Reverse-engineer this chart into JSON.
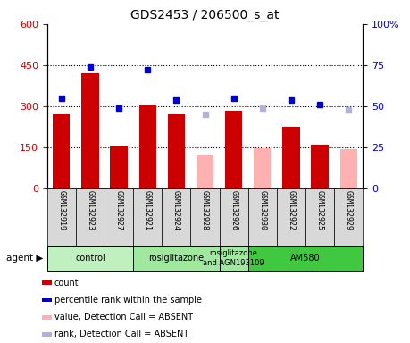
{
  "title": "GDS2453 / 206500_s_at",
  "samples": [
    "GSM132919",
    "GSM132923",
    "GSM132927",
    "GSM132921",
    "GSM132924",
    "GSM132928",
    "GSM132926",
    "GSM132930",
    "GSM132922",
    "GSM132925",
    "GSM132929"
  ],
  "count_values": [
    270,
    420,
    155,
    305,
    270,
    null,
    285,
    null,
    225,
    160,
    null
  ],
  "count_absent": [
    null,
    null,
    null,
    null,
    null,
    125,
    null,
    148,
    null,
    null,
    145
  ],
  "rank_present_pct": [
    55,
    74,
    49,
    72,
    54,
    null,
    55,
    null,
    54,
    51,
    null
  ],
  "rank_absent_pct": [
    null,
    null,
    null,
    null,
    null,
    45,
    null,
    49,
    null,
    null,
    48
  ],
  "ylim_left": [
    0,
    600
  ],
  "ylim_right": [
    0,
    100
  ],
  "yticks_left": [
    0,
    150,
    300,
    450,
    600
  ],
  "ytick_labels_left": [
    "0",
    "150",
    "300",
    "450",
    "600"
  ],
  "yticks_right": [
    0,
    25,
    50,
    75,
    100
  ],
  "ytick_labels_right": [
    "0",
    "25",
    "50",
    "75",
    "100%"
  ],
  "agent_groups": [
    {
      "label": "control",
      "start": 0,
      "end": 3,
      "color": "#c0f0c0"
    },
    {
      "label": "rosiglitazone",
      "start": 3,
      "end": 6,
      "color": "#a0e8a0"
    },
    {
      "label": "rosiglitazone\nand AGN193109",
      "start": 6,
      "end": 7,
      "color": "#a0e8a0"
    },
    {
      "label": "AM580",
      "start": 7,
      "end": 11,
      "color": "#40c840"
    }
  ],
  "bar_width": 0.6,
  "count_color": "#cc0000",
  "count_absent_color": "#ffb0b0",
  "rank_color": "#0000cc",
  "rank_absent_color": "#b0b0d8",
  "bg_color": "#d8d8d8",
  "plot_bg": "#ffffff",
  "left_tick_color": "#cc0000",
  "right_tick_color": "#0000cc",
  "legend_items": [
    {
      "color": "#cc0000",
      "label": "count"
    },
    {
      "color": "#0000cc",
      "label": "percentile rank within the sample"
    },
    {
      "color": "#ffb0b0",
      "label": "value, Detection Call = ABSENT"
    },
    {
      "color": "#b0b0d8",
      "label": "rank, Detection Call = ABSENT"
    }
  ]
}
